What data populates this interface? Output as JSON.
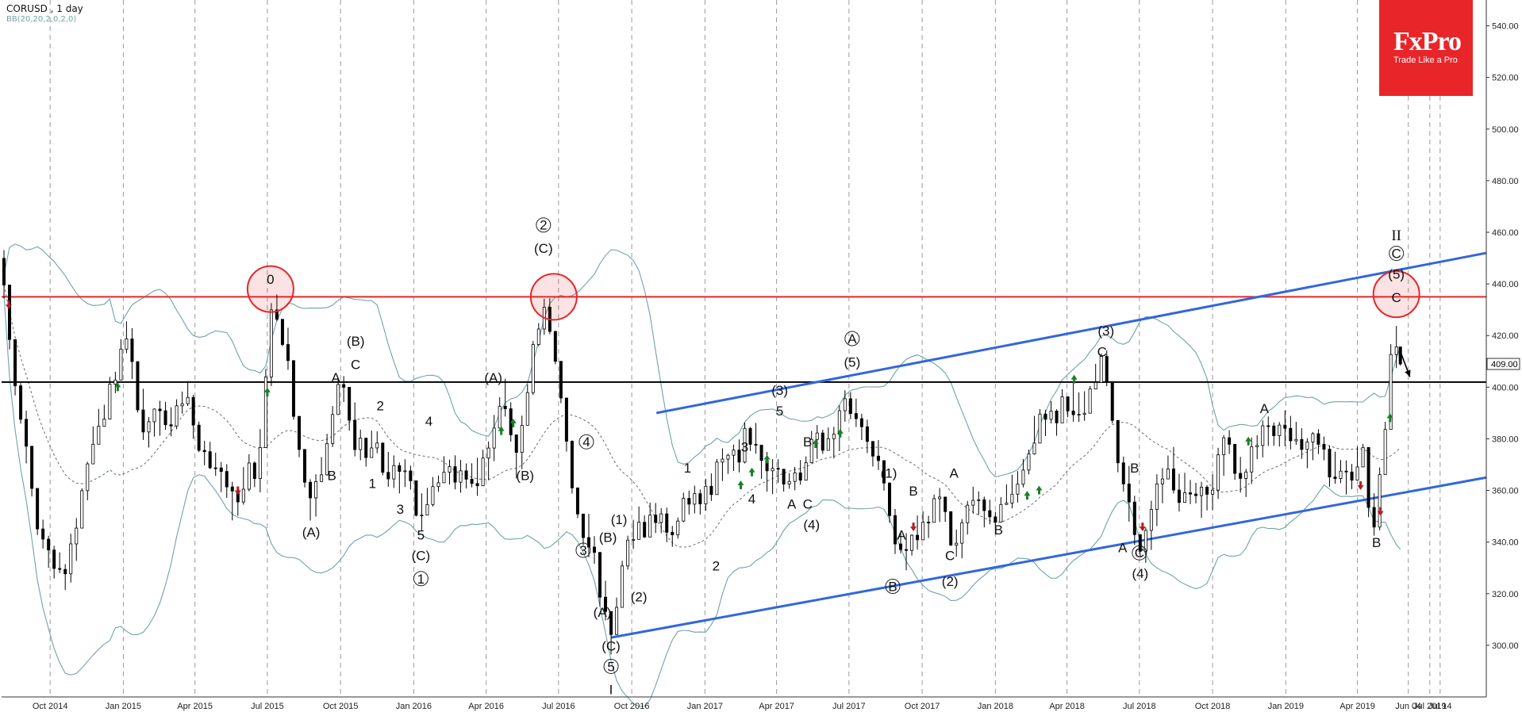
{
  "header": {
    "symbol_timeframe": "CORUSD , 1 day",
    "indicator": "BB(20,20,2,0,2,0)"
  },
  "branding": {
    "brand": "FxPro",
    "tagline": "Trade Like a Pro"
  },
  "colors": {
    "background": "#ffffff",
    "candle": "#000000",
    "bollinger": "#6fa3a8",
    "middle_band": "#5f6f6f",
    "resistance": "#e8262a",
    "support_current": "#000000",
    "channel": "#3366dd",
    "signal_up": "#1a7f2a",
    "signal_down": "#b02020",
    "brand": "#e8262a"
  },
  "chart_data": {
    "type": "candlestick",
    "symbol": "CORUSD",
    "timeframe": "1 day",
    "indicator": "Bollinger Bands (20, 2)",
    "ylim": [
      280,
      550
    ],
    "y_ticks": [
      300,
      320,
      340,
      360,
      380,
      400,
      420,
      440,
      460,
      480,
      500,
      520,
      540
    ],
    "y_tick_labels": [
      "300.00",
      "320.00",
      "340.00",
      "360.00",
      "380.00",
      "400.00",
      "420.00",
      "440.00",
      "460.00",
      "480.00",
      "500.00",
      "520.00",
      "540.00"
    ],
    "x_ticks": [
      "2014-10-01",
      "2015-01-01",
      "2015-04-01",
      "2015-07-01",
      "2015-10-01",
      "2016-01-01",
      "2016-04-01",
      "2016-07-01",
      "2016-10-01",
      "2017-01-01",
      "2017-04-01",
      "2017-07-01",
      "2017-10-01",
      "2018-01-01",
      "2018-04-01",
      "2018-07-01",
      "2018-10-01",
      "2019-01-01",
      "2019-04-01",
      "2019-06-04",
      "2019-07-01",
      "2019-07-14"
    ],
    "x_tick_labels": [
      "Oct 2014",
      "Jan 2015",
      "Apr 2015",
      "Jul 2015",
      "Oct 2015",
      "Jan 2016",
      "Apr 2016",
      "Jul 2016",
      "Oct 2016",
      "Jan 2017",
      "Apr 2017",
      "Jul 2017",
      "Oct 2017",
      "Jan 2018",
      "Apr 2018",
      "Jul 2018",
      "Oct 2018",
      "Jan 2019",
      "Apr 2019",
      "Jun 04",
      "Jul 2019",
      "Jul 14"
    ],
    "xlim": [
      "2014-08-01",
      "2019-09-10"
    ],
    "current_price": 409.0,
    "current_price_label": "409.00",
    "price_anchors": [
      [
        "2014-08-01",
        452
      ],
      [
        "2014-09-10",
        356
      ],
      [
        "2014-10-20",
        323
      ],
      [
        "2014-12-01",
        385
      ],
      [
        "2015-01-08",
        418
      ],
      [
        "2015-02-01",
        382
      ],
      [
        "2015-03-20",
        394
      ],
      [
        "2015-05-15",
        358
      ],
      [
        "2015-06-20",
        365
      ],
      [
        "2015-07-10",
        433
      ],
      [
        "2015-08-01",
        405
      ],
      [
        "2015-08-25",
        347
      ],
      [
        "2015-10-01",
        400
      ],
      [
        "2015-10-25",
        380
      ],
      [
        "2015-12-10",
        368
      ],
      [
        "2016-01-10",
        354
      ],
      [
        "2016-02-20",
        370
      ],
      [
        "2016-03-20",
        363
      ],
      [
        "2016-04-25",
        395
      ],
      [
        "2016-05-10",
        371
      ],
      [
        "2016-06-18",
        438
      ],
      [
        "2016-07-18",
        366
      ],
      [
        "2016-08-15",
        335
      ],
      [
        "2016-09-05",
        305
      ],
      [
        "2016-10-10",
        350
      ],
      [
        "2016-11-20",
        345
      ],
      [
        "2017-01-20",
        366
      ],
      [
        "2017-02-25",
        380
      ],
      [
        "2017-04-10",
        362
      ],
      [
        "2017-05-15",
        372
      ],
      [
        "2017-07-10",
        393
      ],
      [
        "2017-08-20",
        360
      ],
      [
        "2017-09-10",
        333
      ],
      [
        "2017-10-15",
        355
      ],
      [
        "2017-11-15",
        342
      ],
      [
        "2017-12-10",
        356
      ],
      [
        "2018-01-05",
        348
      ],
      [
        "2018-02-10",
        372
      ],
      [
        "2018-03-10",
        390
      ],
      [
        "2018-04-20",
        393
      ],
      [
        "2018-05-20",
        408
      ],
      [
        "2018-06-20",
        352
      ],
      [
        "2018-07-05",
        337
      ],
      [
        "2018-08-10",
        370
      ],
      [
        "2018-09-10",
        352
      ],
      [
        "2018-10-20",
        375
      ],
      [
        "2018-11-15",
        365
      ],
      [
        "2018-12-10",
        385
      ],
      [
        "2019-01-05",
        382
      ],
      [
        "2019-02-10",
        377
      ],
      [
        "2019-03-25",
        362
      ],
      [
        "2019-04-10",
        378
      ],
      [
        "2019-04-25",
        345
      ],
      [
        "2019-05-08",
        380
      ],
      [
        "2019-05-18",
        425
      ],
      [
        "2019-05-26",
        409
      ]
    ],
    "lines": [
      {
        "name": "resistance",
        "y": 435,
        "color": "#e8262a"
      },
      {
        "name": "support",
        "y": 402,
        "color": "#000000"
      }
    ],
    "channel": {
      "upper": [
        [
          "2016-11-01",
          390
        ],
        [
          "2019-09-10",
          452
        ]
      ],
      "lower": [
        [
          "2016-09-05",
          303
        ],
        [
          "2019-09-10",
          365
        ]
      ]
    },
    "highlight_circles": [
      {
        "date": "2015-07-05",
        "price": 438
      },
      {
        "date": "2016-06-25",
        "price": 435
      },
      {
        "date": "2019-05-20",
        "price": 436
      }
    ],
    "forecast_arrow": {
      "from": [
        "2019-05-26",
        413
      ],
      "to": [
        "2019-06-06",
        404
      ]
    },
    "signal_arrows": [
      {
        "date": "2014-12-25",
        "price": 400,
        "dir": "up"
      },
      {
        "date": "2015-07-01",
        "price": 398,
        "dir": "up"
      },
      {
        "date": "2016-04-20",
        "price": 383,
        "dir": "up"
      },
      {
        "date": "2016-05-05",
        "price": 386,
        "dir": "up"
      },
      {
        "date": "2017-02-15",
        "price": 362,
        "dir": "up"
      },
      {
        "date": "2017-03-01",
        "price": 367,
        "dir": "up"
      },
      {
        "date": "2017-03-20",
        "price": 372,
        "dir": "up"
      },
      {
        "date": "2017-05-20",
        "price": 378,
        "dir": "up"
      },
      {
        "date": "2017-06-20",
        "price": 382,
        "dir": "up"
      },
      {
        "date": "2018-02-10",
        "price": 358,
        "dir": "up"
      },
      {
        "date": "2018-02-25",
        "price": 360,
        "dir": "up"
      },
      {
        "date": "2018-04-10",
        "price": 403,
        "dir": "up"
      },
      {
        "date": "2018-11-15",
        "price": 379,
        "dir": "up"
      },
      {
        "date": "2019-05-12",
        "price": 388,
        "dir": "up"
      },
      {
        "date": "2014-08-10",
        "price": 432,
        "dir": "down"
      },
      {
        "date": "2015-05-25",
        "price": 360,
        "dir": "down"
      },
      {
        "date": "2017-09-20",
        "price": 346,
        "dir": "down"
      },
      {
        "date": "2018-07-05",
        "price": 346,
        "dir": "down"
      },
      {
        "date": "2019-04-05",
        "price": 362,
        "dir": "down"
      },
      {
        "date": "2019-04-30",
        "price": 352,
        "dir": "down"
      }
    ],
    "annotations": [
      {
        "text": "0",
        "date": "2015-07-05",
        "price": 440
      },
      {
        "text": "2",
        "date": "2016-06-12",
        "price": 461,
        "circled": true
      },
      {
        "text": "(C)",
        "date": "2016-06-12",
        "price": 452
      },
      {
        "text": "(A)",
        "date": "2016-04-10",
        "price": 402
      },
      {
        "text": "(B)",
        "date": "2016-05-20",
        "price": 364
      },
      {
        "text": "4",
        "date": "2016-08-05",
        "price": 377,
        "circled": true
      },
      {
        "text": "3",
        "date": "2016-08-01",
        "price": 335,
        "circled": true
      },
      {
        "text": "(B)",
        "date": "2016-09-01",
        "price": 340
      },
      {
        "text": "(1)",
        "date": "2016-09-15",
        "price": 347
      },
      {
        "text": "(2)",
        "date": "2016-10-10",
        "price": 317
      },
      {
        "text": "(A)",
        "date": "2016-08-25",
        "price": 311
      },
      {
        "text": "(C)",
        "date": "2016-09-05",
        "price": 298
      },
      {
        "text": "5",
        "date": "2016-09-05",
        "price": 290,
        "circled": true
      },
      {
        "text": "I",
        "date": "2016-09-05",
        "price": 281
      },
      {
        "text": "(B)",
        "date": "2015-10-20",
        "price": 416
      },
      {
        "text": "C",
        "date": "2015-10-20",
        "price": 407
      },
      {
        "text": "A",
        "date": "2015-09-25",
        "price": 402
      },
      {
        "text": "B",
        "date": "2015-09-20",
        "price": 364
      },
      {
        "text": "1",
        "date": "2015-11-10",
        "price": 361
      },
      {
        "text": "2",
        "date": "2015-11-20",
        "price": 391
      },
      {
        "text": "3",
        "date": "2015-12-15",
        "price": 351
      },
      {
        "text": "4",
        "date": "2016-01-20",
        "price": 385
      },
      {
        "text": "5",
        "date": "2016-01-10",
        "price": 341
      },
      {
        "text": "(C)",
        "date": "2016-01-10",
        "price": 333
      },
      {
        "text": "1",
        "date": "2016-01-10",
        "price": 324,
        "circled": true
      },
      {
        "text": "(A)",
        "date": "2015-08-25",
        "price": 342
      },
      {
        "text": "1",
        "date": "2016-12-10",
        "price": 367
      },
      {
        "text": "2",
        "date": "2017-01-15",
        "price": 329
      },
      {
        "text": "3",
        "date": "2017-02-20",
        "price": 375
      },
      {
        "text": "4",
        "date": "2017-03-01",
        "price": 355
      },
      {
        "text": "(3)",
        "date": "2017-04-05",
        "price": 397
      },
      {
        "text": "5",
        "date": "2017-04-05",
        "price": 389
      },
      {
        "text": "B",
        "date": "2017-05-10",
        "price": 377
      },
      {
        "text": "A",
        "date": "2017-04-20",
        "price": 353
      },
      {
        "text": "C",
        "date": "2017-05-10",
        "price": 353
      },
      {
        "text": "(4)",
        "date": "2017-05-15",
        "price": 345
      },
      {
        "text": "A",
        "date": "2017-07-05",
        "price": 417,
        "circled": true
      },
      {
        "text": "(5)",
        "date": "2017-07-05",
        "price": 408
      },
      {
        "text": "(1)",
        "date": "2017-08-20",
        "price": 365
      },
      {
        "text": "B",
        "date": "2017-08-25",
        "price": 321,
        "circled": true
      },
      {
        "text": "B",
        "date": "2017-09-20",
        "price": 358
      },
      {
        "text": "A",
        "date": "2017-09-05",
        "price": 341
      },
      {
        "text": "A",
        "date": "2017-11-10",
        "price": 365
      },
      {
        "text": "C",
        "date": "2017-11-05",
        "price": 333
      },
      {
        "text": "(2)",
        "date": "2017-11-05",
        "price": 323
      },
      {
        "text": "B",
        "date": "2018-01-05",
        "price": 343
      },
      {
        "text": "(3)",
        "date": "2018-05-20",
        "price": 420
      },
      {
        "text": "C",
        "date": "2018-05-15",
        "price": 412
      },
      {
        "text": "B",
        "date": "2018-06-25",
        "price": 367
      },
      {
        "text": "A",
        "date": "2018-06-10",
        "price": 336
      },
      {
        "text": "C",
        "date": "2018-07-01",
        "price": 334,
        "circled": true
      },
      {
        "text": "(4)",
        "date": "2018-07-02",
        "price": 326
      },
      {
        "text": "A",
        "date": "2018-12-05",
        "price": 390
      },
      {
        "text": "B",
        "date": "2019-04-25",
        "price": 338
      },
      {
        "text": "II",
        "date": "2019-05-20",
        "price": 457
      },
      {
        "text": "C",
        "date": "2019-05-20",
        "price": 450,
        "circled": true
      },
      {
        "text": "(5)",
        "date": "2019-05-20",
        "price": 442
      },
      {
        "text": "C",
        "date": "2019-05-20",
        "price": 433
      }
    ]
  }
}
